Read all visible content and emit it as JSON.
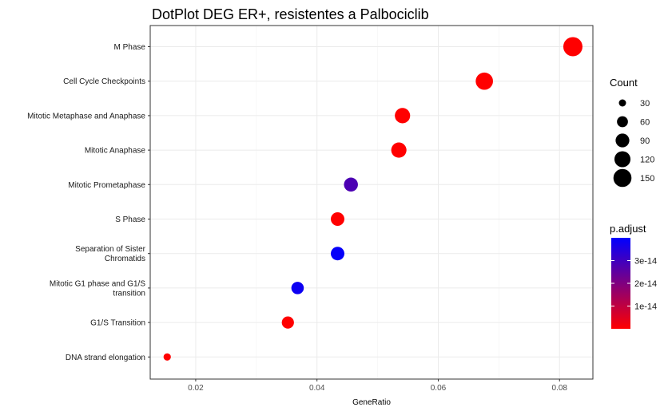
{
  "chart_data": {
    "type": "scatter",
    "title": "DotPlot DEG ER+, resistentes a Palbociclib",
    "xlabel": "GeneRatio",
    "ylabel": "",
    "xlim": [
      0.0125,
      0.0855
    ],
    "xticks": [
      "0.02",
      "0.04",
      "0.06",
      "0.08"
    ],
    "xtick_values": [
      0.02,
      0.04,
      0.06,
      0.08
    ],
    "grid": true,
    "categories": [
      "M Phase",
      "Cell Cycle Checkpoints",
      "Mitotic Metaphase and Anaphase",
      "Mitotic Anaphase",
      "Mitotic Prometaphase",
      "S Phase",
      "Separation of Sister Chromatids",
      "Mitotic G1 phase and G1/S transition",
      "G1/S Transition",
      "DNA strand elongation"
    ],
    "category_lines": [
      [
        "M Phase"
      ],
      [
        "Cell Cycle Checkpoints"
      ],
      [
        "Mitotic Metaphase and Anaphase"
      ],
      [
        "Mitotic Anaphase"
      ],
      [
        "Mitotic Prometaphase"
      ],
      [
        "S Phase"
      ],
      [
        "Separation of Sister",
        "Chromatids"
      ],
      [
        "Mitotic G1 phase and G1/S",
        "transition"
      ],
      [
        "G1/S Transition"
      ],
      [
        "DNA strand elongation"
      ]
    ],
    "gene_ratio": [
      0.0822,
      0.0676,
      0.0541,
      0.0535,
      0.0456,
      0.0434,
      0.0434,
      0.0368,
      0.0352,
      0.0153
    ],
    "count": [
      168,
      138,
      110,
      109,
      93,
      88,
      88,
      75,
      72,
      31
    ],
    "p_adjust": [
      1e-17,
      1e-17,
      1e-17,
      1e-17,
      2.8e-14,
      1e-17,
      3.9e-14,
      3.8e-14,
      1e-17,
      1e-17
    ],
    "legend": {
      "position": "right",
      "count": {
        "title": "Count",
        "values": [
          30,
          60,
          90,
          120,
          150
        ],
        "labels": [
          "30",
          "60",
          "90",
          "120",
          "150"
        ]
      },
      "p_adjust": {
        "title": "p.adjust",
        "range": [
          0,
          4e-14
        ],
        "ticks": [
          3e-14,
          2e-14,
          1e-14
        ],
        "labels": [
          "3e-14",
          "2e-14",
          "1e-14"
        ],
        "low_color": "#FF0000",
        "high_color": "#0000FF"
      }
    }
  }
}
